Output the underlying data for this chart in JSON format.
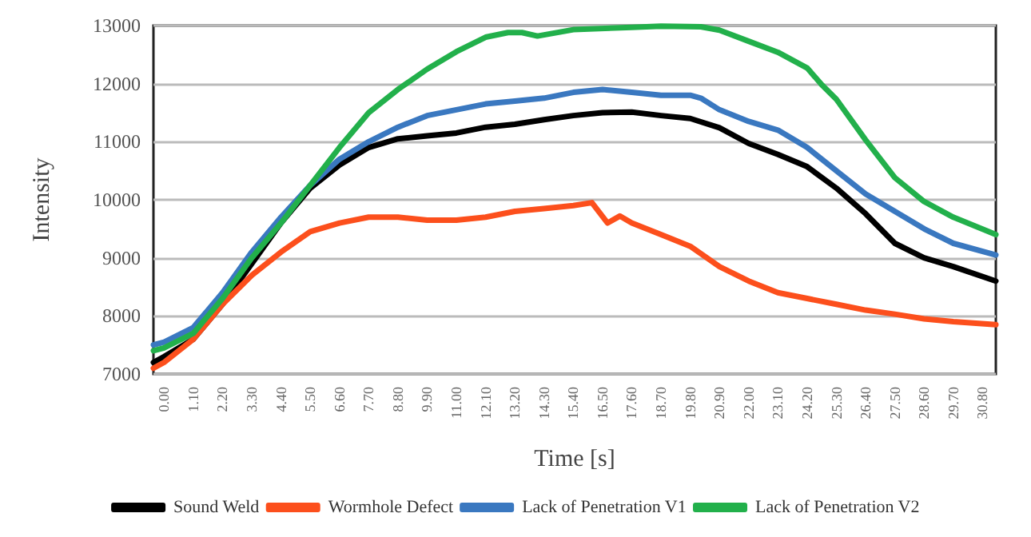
{
  "chart_data": {
    "type": "line",
    "xlabel": "Time [s]",
    "ylabel": "Intensity",
    "xlim": [
      -0.4,
      31.3
    ],
    "ylim": [
      7000,
      13000
    ],
    "xticks": [
      {
        "value": 0,
        "label": "0.00"
      },
      {
        "value": 1.1,
        "label": "1.10"
      },
      {
        "value": 2.2,
        "label": "2.20"
      },
      {
        "value": 3.3,
        "label": "3.30"
      },
      {
        "value": 4.4,
        "label": "4.40"
      },
      {
        "value": 5.5,
        "label": "5.50"
      },
      {
        "value": 6.6,
        "label": "6.60"
      },
      {
        "value": 7.7,
        "label": "7.70"
      },
      {
        "value": 8.8,
        "label": "8.80"
      },
      {
        "value": 9.9,
        "label": "9.90"
      },
      {
        "value": 11,
        "label": "11.00"
      },
      {
        "value": 12.1,
        "label": "12.10"
      },
      {
        "value": 13.2,
        "label": "13.20"
      },
      {
        "value": 14.3,
        "label": "14.30"
      },
      {
        "value": 15.4,
        "label": "15.40"
      },
      {
        "value": 16.5,
        "label": "16.50"
      },
      {
        "value": 17.6,
        "label": "17.60"
      },
      {
        "value": 18.7,
        "label": "18.70"
      },
      {
        "value": 19.8,
        "label": "19.80"
      },
      {
        "value": 20.9,
        "label": "20.90"
      },
      {
        "value": 22,
        "label": "22.00"
      },
      {
        "value": 23.1,
        "label": "23.10"
      },
      {
        "value": 24.2,
        "label": "24.20"
      },
      {
        "value": 25.3,
        "label": "25.30"
      },
      {
        "value": 26.4,
        "label": "26.40"
      },
      {
        "value": 27.5,
        "label": "27.50"
      },
      {
        "value": 28.6,
        "label": "28.60"
      },
      {
        "value": 29.7,
        "label": "29.70"
      },
      {
        "value": 30.8,
        "label": "30.80"
      }
    ],
    "yticks": [
      7000,
      8000,
      9000,
      10000,
      11000,
      12000,
      13000
    ],
    "grid": "y",
    "legend": "bottom",
    "marker": "none",
    "line_style": "solid",
    "series": [
      {
        "name": "Sound Weld",
        "color": "#000000",
        "x": [
          -0.4,
          0,
          1.1,
          2.2,
          3.3,
          4.4,
          5.5,
          6.6,
          7.7,
          8.8,
          9.9,
          11,
          12.1,
          13.2,
          14.3,
          15.4,
          16.5,
          17.6,
          18.7,
          19.8,
          20.9,
          22,
          23.1,
          24.2,
          25.3,
          26.4,
          27.5,
          28.6,
          29.7,
          31.3
        ],
        "values": [
          7200,
          7300,
          7600,
          8200,
          8900,
          9600,
          10200,
          10600,
          10900,
          11050,
          11100,
          11150,
          11250,
          11300,
          11380,
          11450,
          11500,
          11510,
          11450,
          11400,
          11240,
          10970,
          10780,
          10570,
          10200,
          9760,
          9250,
          9000,
          8850,
          8600
        ]
      },
      {
        "name": "Wormhole Defect",
        "color": "#fc4f1c",
        "x": [
          -0.4,
          0,
          1.1,
          2.2,
          3.3,
          4.4,
          5.5,
          6.6,
          7.7,
          8.8,
          9.9,
          11,
          12.1,
          13.2,
          14.3,
          15.4,
          16.1,
          16.69,
          17.15,
          17.6,
          18.7,
          19.8,
          20.9,
          22,
          23.1,
          24.2,
          25.3,
          26.4,
          27.5,
          28.6,
          29.7,
          31.3
        ],
        "values": [
          7100,
          7200,
          7600,
          8200,
          8700,
          9100,
          9450,
          9600,
          9700,
          9700,
          9650,
          9650,
          9700,
          9800,
          9850,
          9900,
          9950,
          9600,
          9720,
          9600,
          9400,
          9200,
          8850,
          8600,
          8400,
          8300,
          8200,
          8100,
          8030,
          7950,
          7900,
          7850
        ]
      },
      {
        "name": "Lack of Penetration V1",
        "color": "#3a78c0",
        "x": [
          -0.4,
          0,
          1.1,
          2.2,
          3.3,
          4.4,
          5.5,
          6.6,
          7.7,
          8.8,
          9.9,
          11,
          12.1,
          13.2,
          14.3,
          15.4,
          16.5,
          17.6,
          18.7,
          19.8,
          20.2,
          20.9,
          22,
          23.1,
          24.2,
          25.3,
          26.4,
          27.5,
          28.6,
          29.7,
          31.3
        ],
        "values": [
          7500,
          7550,
          7800,
          8400,
          9100,
          9700,
          10250,
          10700,
          11000,
          11250,
          11450,
          11550,
          11650,
          11700,
          11750,
          11850,
          11900,
          11850,
          11800,
          11800,
          11750,
          11550,
          11350,
          11200,
          10900,
          10500,
          10100,
          9800,
          9500,
          9250,
          9050
        ]
      },
      {
        "name": "Lack of Penetration V2",
        "color": "#22b04b",
        "x": [
          -0.4,
          0,
          1.1,
          2.2,
          3.3,
          4.4,
          5.5,
          6.6,
          7.7,
          8.8,
          9.9,
          11,
          12.1,
          12.94,
          13.47,
          14.05,
          15.4,
          17.6,
          18.7,
          20.2,
          20.9,
          22,
          23.1,
          24.2,
          24.77,
          25.3,
          26.4,
          27.5,
          28.6,
          29.7,
          31.3
        ],
        "values": [
          7400,
          7450,
          7700,
          8300,
          9000,
          9600,
          10250,
          10900,
          11500,
          11900,
          12250,
          12550,
          12800,
          12880,
          12880,
          12820,
          12930,
          12970,
          12990,
          12980,
          12920,
          12730,
          12540,
          12270,
          11970,
          11730,
          11030,
          10380,
          9970,
          9700,
          9400
        ]
      }
    ]
  }
}
